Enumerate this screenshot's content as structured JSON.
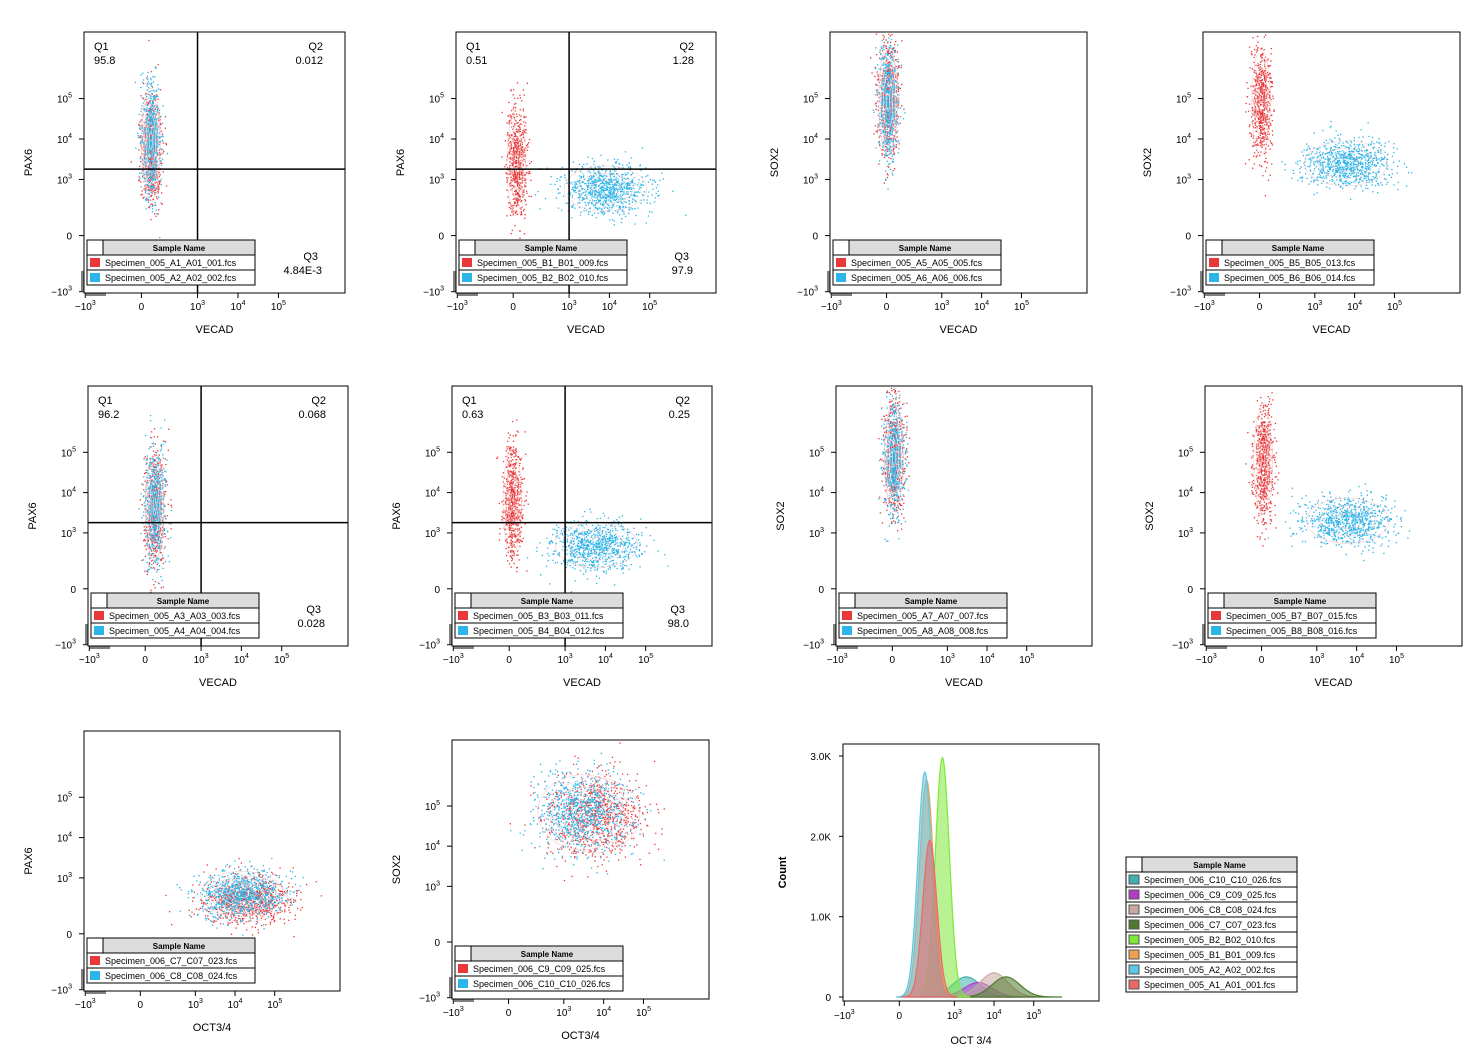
{
  "colors": {
    "red": "#e8383a",
    "cyan": "#2bb5e8",
    "frame": "#000000",
    "legend_header": "#dcdcdc"
  },
  "chart_data": [
    {
      "id": "r1c1",
      "type": "scatter",
      "xlabel": "VECAD",
      "ylabel": "PAX6",
      "xscale": "biexponential",
      "yscale": "biexponential",
      "quadrants": {
        "Q1": "95.8",
        "Q2": "0.012",
        "Q3": "4.84E-3"
      },
      "legend": {
        "header": "Sample Name",
        "entries": [
          "Specimen_005_A1_A01_001.fcs",
          "Specimen_005_A2_A02_002.fcs"
        ]
      },
      "populations": [
        {
          "series": 0,
          "x": 60,
          "y": 6000
        },
        {
          "series": 1,
          "x": 60,
          "y": 9000
        }
      ]
    },
    {
      "id": "r1c2",
      "type": "scatter",
      "xlabel": "VECAD",
      "ylabel": "PAX6",
      "xscale": "biexponential",
      "yscale": "biexponential",
      "quadrants": {
        "Q1": "0.51",
        "Q2": "1.28",
        "Q3": "97.9"
      },
      "legend": {
        "header": "Sample Name",
        "entries": [
          "Specimen_005_B1_B01_009.fcs",
          "Specimen_005_B2_B02_010.fcs"
        ]
      },
      "populations": [
        {
          "series": 0,
          "x": 20,
          "y": 2500
        },
        {
          "series": 1,
          "x": 8000,
          "y": 600
        }
      ]
    },
    {
      "id": "r1c3",
      "type": "scatter",
      "xlabel": "VECAD",
      "ylabel": "SOX2",
      "xscale": "biexponential",
      "yscale": "biexponential",
      "quadrants": null,
      "legend": {
        "header": "Sample Name",
        "entries": [
          "Specimen_005_A5_A05_005.fcs",
          "Specimen_005_A6_A06_006.fcs"
        ]
      },
      "populations": [
        {
          "series": 0,
          "x": 10,
          "y": 100000
        },
        {
          "series": 1,
          "x": 10,
          "y": 80000
        }
      ]
    },
    {
      "id": "r1c4",
      "type": "scatter",
      "xlabel": "VECAD",
      "ylabel": "SOX2",
      "xscale": "biexponential",
      "yscale": "biexponential",
      "quadrants": null,
      "legend": {
        "header": "Sample Name",
        "entries": [
          "Specimen_005_B5_B05_013.fcs",
          "Specimen_005_B6_B06_014.fcs"
        ]
      },
      "populations": [
        {
          "series": 0,
          "x": 10,
          "y": 80000
        },
        {
          "series": 1,
          "x": 6000,
          "y": 2500
        }
      ]
    },
    {
      "id": "r2c1",
      "type": "scatter",
      "xlabel": "VECAD",
      "ylabel": "PAX6",
      "xscale": "biexponential",
      "yscale": "biexponential",
      "quadrants": {
        "Q1": "96.2",
        "Q2": "0.068",
        "Q3": "0.028"
      },
      "legend": {
        "header": "Sample Name",
        "entries": [
          "Specimen_005_A3_A03_003.fcs",
          "Specimen_005_A4_A04_004.fcs"
        ]
      },
      "populations": [
        {
          "series": 0,
          "x": 60,
          "y": 4000
        },
        {
          "series": 1,
          "x": 60,
          "y": 4500
        }
      ]
    },
    {
      "id": "r2c2",
      "type": "scatter",
      "xlabel": "VECAD",
      "ylabel": "PAX6",
      "xscale": "biexponential",
      "yscale": "biexponential",
      "quadrants": {
        "Q1": "0.63",
        "Q2": "0.25",
        "Q3": "98.0"
      },
      "legend": {
        "header": "Sample Name",
        "entries": [
          "Specimen_005_B3_B03_011.fcs",
          "Specimen_005_B4_B04_012.fcs"
        ]
      },
      "populations": [
        {
          "series": 0,
          "x": 20,
          "y": 6000
        },
        {
          "series": 1,
          "x": 6000,
          "y": 500
        }
      ]
    },
    {
      "id": "r2c3",
      "type": "scatter",
      "xlabel": "VECAD",
      "ylabel": "SOX2",
      "xscale": "biexponential",
      "yscale": "biexponential",
      "quadrants": null,
      "legend": {
        "header": "Sample Name",
        "entries": [
          "Specimen_005_A7_A07_007.fcs",
          "Specimen_005_A8_A08_008.fcs"
        ]
      },
      "populations": [
        {
          "series": 0,
          "x": 10,
          "y": 80000
        },
        {
          "series": 1,
          "x": 10,
          "y": 70000
        }
      ]
    },
    {
      "id": "r2c4",
      "type": "scatter",
      "xlabel": "VECAD",
      "ylabel": "SOX2",
      "xscale": "biexponential",
      "yscale": "biexponential",
      "quadrants": null,
      "legend": {
        "header": "Sample Name",
        "entries": [
          "Specimen_005_B7_B07_015.fcs",
          "Specimen_005_B8_B08_016.fcs"
        ]
      },
      "populations": [
        {
          "series": 0,
          "x": 10,
          "y": 60000
        },
        {
          "series": 1,
          "x": 6000,
          "y": 2000
        }
      ]
    },
    {
      "id": "r3c1",
      "type": "scatter",
      "xlabel": "OCT3/4",
      "ylabel": "PAX6",
      "xscale": "biexponential",
      "yscale": "biexponential",
      "quadrants": null,
      "legend": {
        "header": "Sample Name",
        "entries": [
          "Specimen_006_C7_C07_023.fcs",
          "Specimen_006_C8_C08_024.fcs"
        ]
      },
      "populations": [
        {
          "series": 0,
          "x": 20000,
          "y": 300
        },
        {
          "series": 1,
          "x": 15000,
          "y": 400
        }
      ]
    },
    {
      "id": "r3c2",
      "type": "scatter",
      "xlabel": "OCT3/4",
      "ylabel": "SOX2",
      "xscale": "biexponential",
      "yscale": "biexponential",
      "quadrants": null,
      "legend": {
        "header": "Sample Name",
        "entries": [
          "Specimen_006_C9_C09_025.fcs",
          "Specimen_006_C10_C10_026.fcs"
        ]
      },
      "populations": [
        {
          "series": 0,
          "x": 6000,
          "y": 60000
        },
        {
          "series": 1,
          "x": 3000,
          "y": 70000
        }
      ]
    },
    {
      "id": "r3c3",
      "type": "area",
      "xlabel": "OCT 3/4",
      "ylabel": "Count",
      "xscale": "biexponential",
      "ylim": [
        0,
        3000
      ],
      "yticks": [
        "0",
        "1.0K",
        "2.0K",
        "3.0K"
      ],
      "legend": {
        "header": "Sample Name",
        "entries": [
          "Specimen_006_C10_C10_026.fcs",
          "Specimen_006_C9_C09_025.fcs",
          "Specimen_006_C8_C08_024.fcs",
          "Specimen_006_C7_C07_023.fcs",
          "Specimen_005_B2_B02_010.fcs",
          "Specimen_005_B1_B01_009.fcs",
          "Specimen_005_A2_A02_002.fcs",
          "Specimen_005_A1_A01_001.fcs"
        ]
      },
      "series": [
        {
          "name": "Specimen_006_C10_C10_026.fcs",
          "color": "#3fb0b0",
          "peak_x": 2000,
          "peak_count": 250
        },
        {
          "name": "Specimen_006_C9_C09_025.fcs",
          "color": "#b43cc8",
          "peak_x": 4000,
          "peak_count": 180
        },
        {
          "name": "Specimen_006_C8_C08_024.fcs",
          "color": "#c8a8a0",
          "peak_x": 10000,
          "peak_count": 300
        },
        {
          "name": "Specimen_006_C7_C07_023.fcs",
          "color": "#4f7a2e",
          "peak_x": 20000,
          "peak_count": 250
        },
        {
          "name": "Specimen_005_B2_B02_010.fcs",
          "color": "#7ee83a",
          "peak_x": 500,
          "peak_count": 2980
        },
        {
          "name": "Specimen_005_B1_B01_009.fcs",
          "color": "#f0a050",
          "peak_x": 200,
          "peak_count": 2700
        },
        {
          "name": "Specimen_005_A2_A02_002.fcs",
          "color": "#5cc8e8",
          "peak_x": 180,
          "peak_count": 2800
        },
        {
          "name": "Specimen_005_A1_A01_001.fcs",
          "color": "#e86a6a",
          "peak_x": 240,
          "peak_count": 1950
        }
      ]
    }
  ]
}
